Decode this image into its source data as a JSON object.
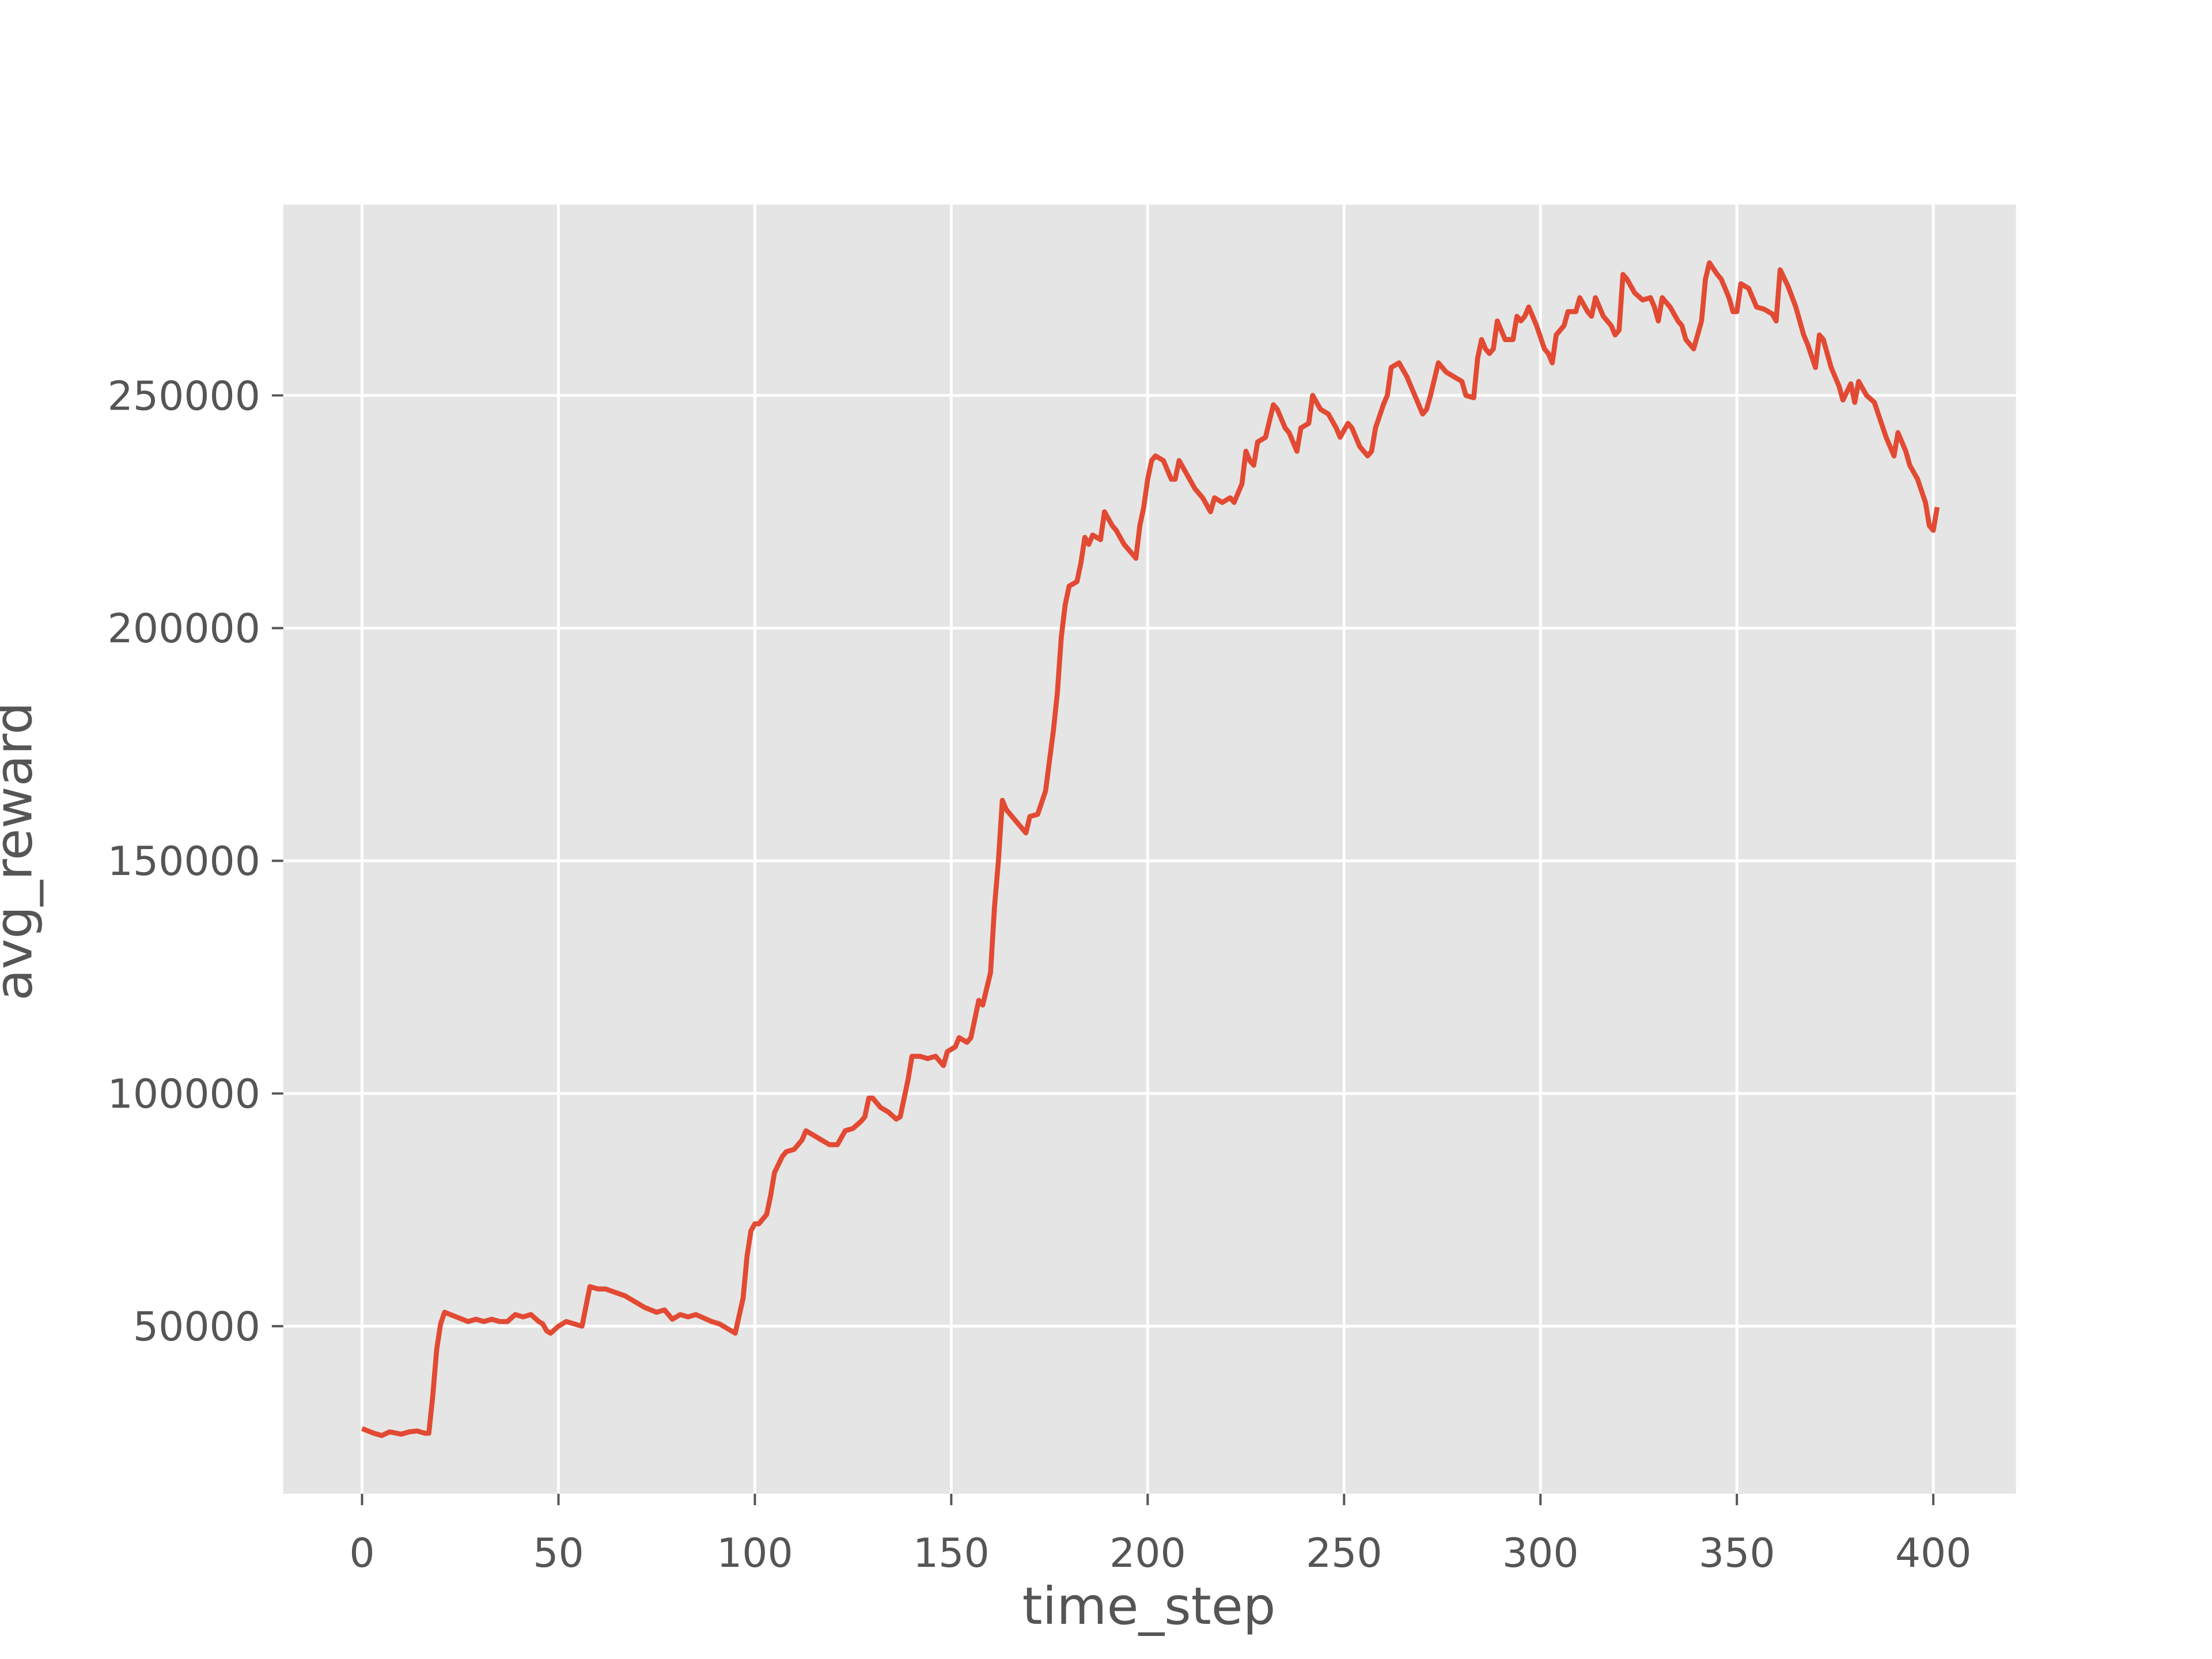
{
  "chart_data": {
    "type": "line",
    "xlabel": "time_step",
    "ylabel": "avg_reward",
    "color": "#e24a33",
    "grid": true,
    "xlim": [
      -20.05,
      421.05
    ],
    "ylim": [
      14000,
      291000
    ],
    "xticks": [
      0,
      50,
      100,
      150,
      200,
      250,
      300,
      350,
      400
    ],
    "yticks": [
      50000,
      100000,
      150000,
      200000,
      250000
    ],
    "x": [
      0,
      3,
      5,
      7,
      10,
      12,
      14,
      16,
      17,
      18,
      19,
      20,
      21,
      24,
      27,
      29,
      31,
      33,
      35,
      37,
      39,
      41,
      43,
      45,
      46,
      47,
      48,
      50,
      52,
      54,
      56,
      58,
      60,
      62,
      67,
      72,
      75,
      77,
      79,
      81,
      83,
      85,
      89,
      91,
      93,
      95,
      97,
      98,
      99,
      100,
      101,
      103,
      104,
      105,
      107,
      108,
      110,
      112,
      113,
      115,
      117,
      119,
      121,
      123,
      125,
      127,
      128,
      129,
      130,
      132,
      134,
      136,
      137,
      139,
      140,
      142,
      144,
      146,
      148,
      149,
      151,
      152,
      154,
      155,
      157,
      158,
      160,
      161,
      162,
      163,
      164,
      166,
      168,
      169,
      170,
      172,
      174,
      176,
      177,
      178,
      179,
      180,
      182,
      183,
      184,
      185,
      186,
      188,
      189,
      191,
      192,
      194,
      196,
      197,
      198,
      199,
      200,
      201,
      202,
      204,
      206,
      207,
      208,
      210,
      212,
      214,
      216,
      217,
      219,
      221,
      222,
      224,
      225,
      226,
      227,
      228,
      230,
      232,
      233,
      235,
      236,
      238,
      239,
      241,
      242,
      244,
      246,
      248,
      249,
      251,
      252,
      254,
      256,
      257,
      258,
      260,
      261,
      262,
      264,
      266,
      268,
      270,
      271,
      272,
      274,
      276,
      278,
      280,
      281,
      283,
      284,
      285,
      286,
      287,
      288,
      289,
      291,
      293,
      294,
      295,
      296,
      297,
      299,
      301,
      302,
      303,
      304,
      306,
      307,
      309,
      310,
      312,
      313,
      314,
      316,
      318,
      319,
      320,
      321,
      322,
      324,
      326,
      328,
      329,
      330,
      331,
      333,
      335,
      336,
      337,
      339,
      341,
      342,
      343,
      345,
      346,
      348,
      349,
      350,
      351,
      353,
      355,
      357,
      359,
      360,
      361,
      363,
      365,
      367,
      368,
      370,
      371,
      372,
      374,
      376,
      377,
      379,
      380,
      381,
      383,
      385,
      386,
      388,
      390,
      391,
      393,
      394,
      396,
      398,
      399,
      400,
      401
    ],
    "values": [
      28000,
      27000,
      26500,
      27300,
      26800,
      27300,
      27500,
      27000,
      27000,
      35000,
      45000,
      50500,
      53000,
      52000,
      51000,
      51500,
      51000,
      51500,
      51000,
      51000,
      52500,
      52000,
      52500,
      51000,
      50500,
      49000,
      48500,
      50000,
      51000,
      50500,
      50000,
      58500,
      58000,
      58000,
      56500,
      54000,
      53000,
      53500,
      51500,
      52500,
      52000,
      52500,
      51000,
      50500,
      49500,
      48500,
      56000,
      65000,
      70500,
      72000,
      72000,
      74000,
      78000,
      83000,
      86500,
      87500,
      88000,
      90000,
      92000,
      91000,
      90000,
      89000,
      89000,
      92000,
      92500,
      94000,
      95000,
      99000,
      99000,
      97000,
      96000,
      94500,
      95000,
      103000,
      108000,
      108000,
      107500,
      108000,
      106000,
      109000,
      110000,
      112000,
      111000,
      112000,
      120000,
      119000,
      126000,
      140000,
      150000,
      163000,
      161000,
      159000,
      157000,
      156000,
      159500,
      160000,
      165000,
      178000,
      186000,
      198000,
      205000,
      209000,
      210000,
      214000,
      219500,
      218000,
      220000,
      219000,
      225000,
      222000,
      221000,
      218000,
      216000,
      215000,
      222000,
      226000,
      232000,
      236000,
      237000,
      236000,
      232000,
      232000,
      236000,
      233000,
      230000,
      228000,
      225000,
      228000,
      227000,
      228000,
      227000,
      231000,
      238000,
      236000,
      235000,
      240000,
      241000,
      248000,
      247000,
      243000,
      242000,
      238000,
      243000,
      244000,
      250000,
      247000,
      246000,
      243000,
      241000,
      244000,
      243000,
      239000,
      237000,
      238000,
      243000,
      248000,
      250000,
      256000,
      257000,
      254000,
      250000,
      246000,
      247000,
      250000,
      257000,
      255000,
      254000,
      253000,
      250000,
      249500,
      258000,
      262000,
      260000,
      259000,
      260000,
      266000,
      262000,
      262000,
      267000,
      266000,
      267000,
      269000,
      265000,
      260000,
      259000,
      257000,
      263000,
      265000,
      268000,
      268000,
      271000,
      268000,
      267000,
      271000,
      267000,
      265000,
      263000,
      264000,
      276000,
      275000,
      272000,
      270500,
      271000,
      269000,
      266000,
      271000,
      269000,
      266000,
      265000,
      262000,
      260000,
      266000,
      275000,
      278500,
      276000,
      275000,
      271000,
      268000,
      268000,
      274000,
      273000,
      269000,
      268500,
      267500,
      266000,
      277000,
      273500,
      269000,
      263000,
      261000,
      256000,
      263000,
      262000,
      256000,
      252000,
      249000,
      252500,
      248500,
      253000,
      250000,
      248500,
      246000,
      241000,
      237000,
      242000,
      238000,
      235000,
      232000,
      227000,
      222000,
      221000,
      226000
    ]
  }
}
